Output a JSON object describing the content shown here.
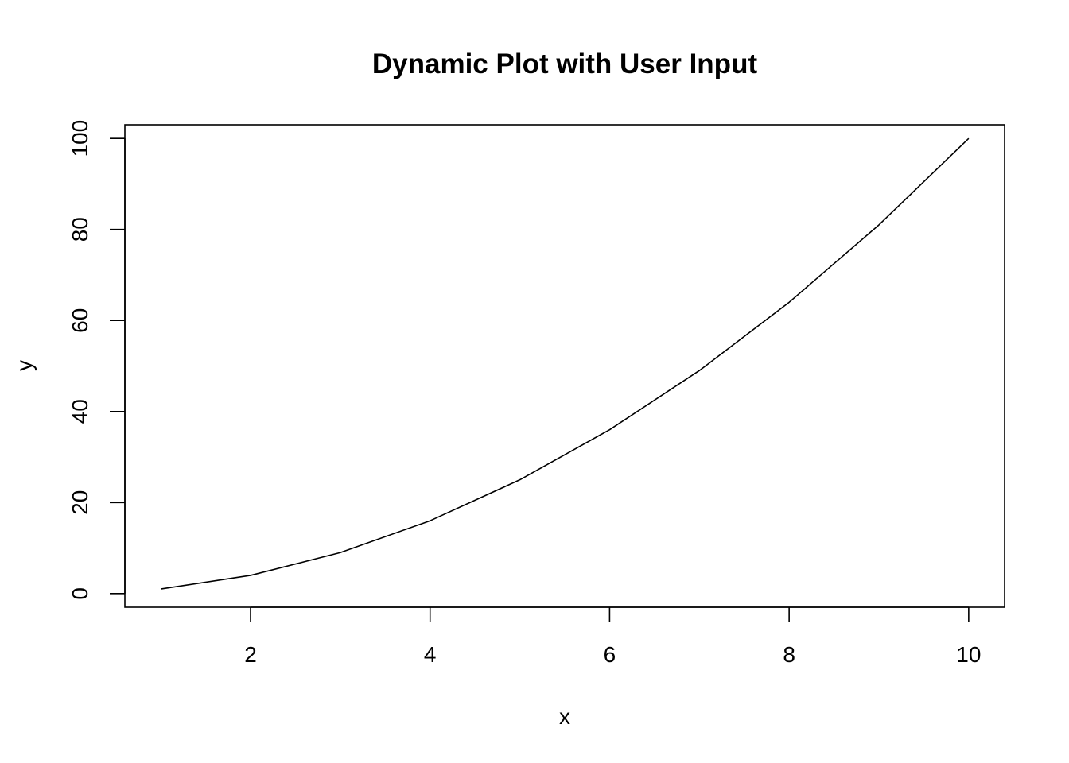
{
  "chart_data": {
    "type": "line",
    "title": "Dynamic Plot with User Input",
    "xlabel": "x",
    "ylabel": "y",
    "xlim": [
      0.6,
      10.4
    ],
    "ylim": [
      -3,
      103
    ],
    "xticks": [
      2,
      4,
      6,
      8,
      10
    ],
    "yticks": [
      0,
      20,
      40,
      60,
      80,
      100
    ],
    "grid": false,
    "legend": "none",
    "line_color": "#000000",
    "series": [
      {
        "x": [
          1,
          2,
          3,
          4,
          5,
          6,
          7,
          8,
          9,
          10
        ],
        "values": [
          1,
          4,
          9,
          16,
          25,
          36,
          49,
          64,
          81,
          100
        ]
      }
    ]
  }
}
